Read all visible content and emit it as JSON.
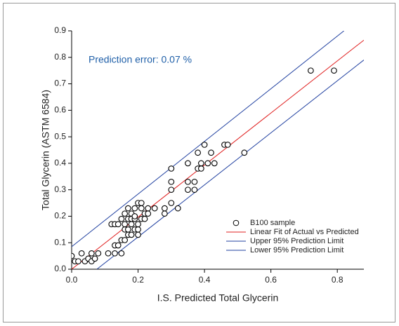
{
  "chart_data": {
    "type": "scatter",
    "annotation": "Prediction error:  0.07 %",
    "annotation_color": "#1f5fa8",
    "x_label": "I.S. Predicted Total Glycerin",
    "y_label": "Total Glycerin (ASTM 6584)",
    "xlim": [
      0,
      0.88
    ],
    "ylim": [
      0,
      0.9
    ],
    "xticks": [
      {
        "value": 0,
        "label": "0.0"
      },
      0.2,
      0.4,
      0.6,
      0.8
    ],
    "yticks": [
      {
        "value": 0,
        "label": "0.0"
      },
      0.1,
      0.2,
      0.3,
      0.4,
      0.5,
      0.6,
      0.7,
      0.8,
      0.9
    ],
    "legend": "lower right",
    "series": [
      {
        "name": "B100 sample",
        "type": "scatter",
        "color": "#000000",
        "x": [
          0.0,
          0.01,
          0.02,
          0.03,
          0.04,
          0.05,
          0.06,
          0.06,
          0.07,
          0.08,
          0.11,
          0.12,
          0.13,
          0.13,
          0.13,
          0.14,
          0.14,
          0.15,
          0.15,
          0.15,
          0.16,
          0.16,
          0.16,
          0.16,
          0.17,
          0.17,
          0.17,
          0.17,
          0.18,
          0.18,
          0.18,
          0.18,
          0.19,
          0.19,
          0.19,
          0.19,
          0.2,
          0.2,
          0.2,
          0.2,
          0.21,
          0.21,
          0.21,
          0.22,
          0.22,
          0.23,
          0.23,
          0.25,
          0.28,
          0.28,
          0.3,
          0.3,
          0.3,
          0.3,
          0.32,
          0.35,
          0.35,
          0.35,
          0.37,
          0.37,
          0.38,
          0.38,
          0.39,
          0.39,
          0.4,
          0.41,
          0.42,
          0.43,
          0.46,
          0.47,
          0.52,
          0.72,
          0.79
        ],
        "values": [
          0.05,
          0.03,
          0.03,
          0.06,
          0.03,
          0.04,
          0.03,
          0.06,
          0.04,
          0.06,
          0.06,
          0.17,
          0.17,
          0.09,
          0.06,
          0.17,
          0.09,
          0.06,
          0.11,
          0.19,
          0.21,
          0.17,
          0.15,
          0.11,
          0.19,
          0.23,
          0.15,
          0.13,
          0.21,
          0.19,
          0.17,
          0.13,
          0.23,
          0.19,
          0.15,
          0.2,
          0.17,
          0.15,
          0.13,
          0.25,
          0.23,
          0.19,
          0.25,
          0.21,
          0.19,
          0.21,
          0.23,
          0.23,
          0.23,
          0.21,
          0.38,
          0.33,
          0.3,
          0.25,
          0.23,
          0.4,
          0.33,
          0.3,
          0.33,
          0.3,
          0.38,
          0.44,
          0.4,
          0.38,
          0.47,
          0.4,
          0.44,
          0.4,
          0.47,
          0.47,
          0.44,
          0.75,
          0.75
        ]
      },
      {
        "name": "Linear Fit of Actual vs Predicted",
        "type": "line",
        "color": "#e02020",
        "x": [
          0,
          0.88
        ],
        "values": [
          0,
          0.865
        ]
      },
      {
        "name": "Upper 95% Prediction Limit",
        "type": "line",
        "color": "#2040a0",
        "x": [
          0,
          0.82
        ],
        "values": [
          0.085,
          0.9
        ]
      },
      {
        "name": "Lower 95% Prediction Limit",
        "type": "line",
        "color": "#2040a0",
        "x": [
          0.076,
          0.88
        ],
        "values": [
          0,
          0.79
        ]
      }
    ]
  }
}
